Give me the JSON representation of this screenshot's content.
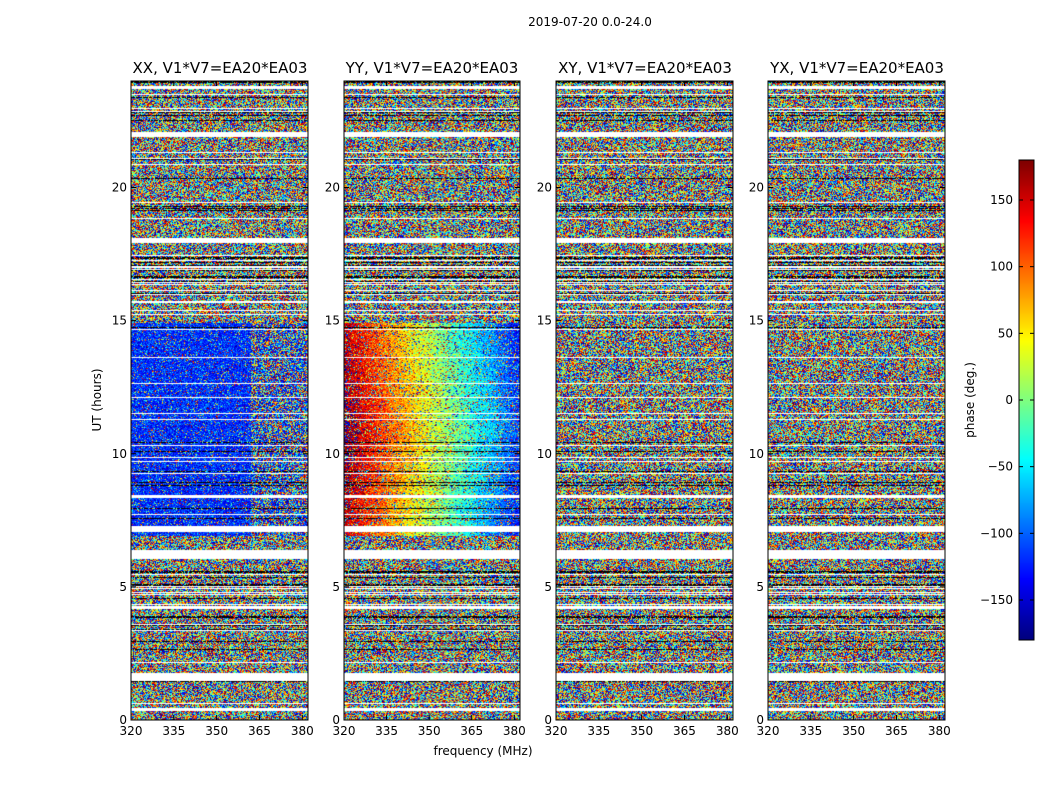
{
  "chart_data": {
    "type": "heatmap",
    "suptitle": "2019-07-20 0.0-24.0",
    "xlabel": "frequency (MHz)",
    "ylabel": "UT (hours)",
    "xlim": [
      320,
      382
    ],
    "ylim": [
      0,
      24
    ],
    "xticks": [
      320,
      335,
      350,
      365,
      380
    ],
    "yticks": [
      0,
      5,
      10,
      15,
      20
    ],
    "colorbar": {
      "label": "phase (deg.)",
      "range": [
        -180,
        180
      ],
      "ticks": [
        -150,
        -100,
        -50,
        0,
        50,
        100,
        150
      ],
      "tick_labels": [
        "−150",
        "−100",
        "−50",
        "0",
        "50",
        "100",
        "150"
      ],
      "colormap": [
        "#00007f",
        "#0000ff",
        "#007fff",
        "#00ffff",
        "#7fff7f",
        "#ffff00",
        "#ff7f00",
        "#ff0000",
        "#7f0000"
      ]
    },
    "panels": [
      {
        "title": "XX, V1*V7=EA20*EA03",
        "pol": "XX",
        "coherent_phase_deg": -120,
        "coherent_span_mhz": [
          320,
          362
        ],
        "coherent_ut_hours": [
          6.9,
          14.9
        ]
      },
      {
        "title": "YY, V1*V7=EA20*EA03",
        "pol": "YY",
        "phase_slope_deg_at_320mhz": 180,
        "phase_slope_deg_at_365mhz": -30,
        "coherent_ut_hours": [
          6.9,
          14.9
        ]
      },
      {
        "title": "XY, V1*V7=EA20*EA03",
        "pol": "XY",
        "note": "noise"
      },
      {
        "title": "YX, V1*V7=EA20*EA03",
        "pol": "YX",
        "note": "noise"
      }
    ],
    "flagged_ut_hours": [
      [
        0.35,
        0.45
      ],
      [
        1.45,
        1.75
      ],
      [
        6.05,
        6.35
      ],
      [
        7.05,
        7.3
      ],
      [
        8.35,
        8.45
      ],
      [
        17.9,
        18.1
      ],
      [
        21.9,
        22.1
      ],
      [
        23.7,
        23.8
      ]
    ],
    "dense_flag_ut_hours": [
      [
        1.9,
        2.0
      ],
      [
        3.0,
        5.9
      ],
      [
        15.0,
        17.5
      ],
      [
        18.5,
        19.5
      ],
      [
        20.3,
        21.4
      ],
      [
        22.8,
        23.4
      ]
    ]
  }
}
